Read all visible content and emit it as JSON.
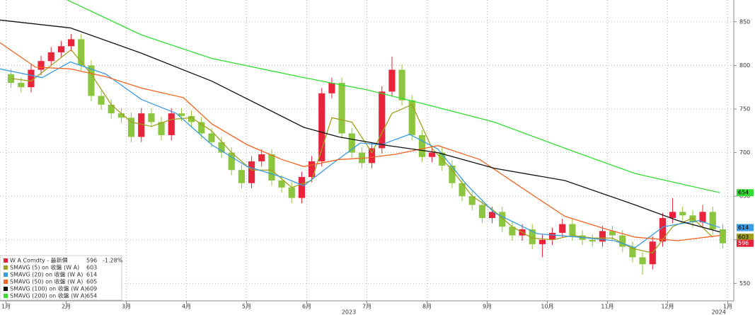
{
  "chart_data": {
    "type": "candlestick",
    "xlim": [
      -0.1,
      12.1
    ],
    "ylim": [
      530,
      875
    ],
    "xticks": [
      {
        "value": 0,
        "label": "1月"
      },
      {
        "value": 1,
        "label": "2月"
      },
      {
        "value": 2,
        "label": "3月"
      },
      {
        "value": 3,
        "label": "4月"
      },
      {
        "value": 4,
        "label": "5月"
      },
      {
        "value": 5,
        "label": "6月"
      },
      {
        "value": 6,
        "label": "7月"
      },
      {
        "value": 7,
        "label": "8月"
      },
      {
        "value": 8,
        "label": "9月"
      },
      {
        "value": 9,
        "label": "10月"
      },
      {
        "value": 10,
        "label": "11月"
      },
      {
        "value": 11,
        "label": "12月"
      },
      {
        "value": 12,
        "label": "1月"
      }
    ],
    "year_labels": [
      {
        "value": 5.7,
        "label": "2023"
      },
      {
        "value": 11.85,
        "label": "2024"
      }
    ],
    "yticks": [
      550,
      600,
      650,
      700,
      750,
      800,
      850
    ],
    "grid": true,
    "legend": "lower left",
    "candles": {
      "name": "W A Comdty - 最新價",
      "change_label": "-1.28%",
      "up_color": "#e8243a",
      "down_color": "#8cc63e",
      "x": [
        0.083,
        0.25,
        0.417,
        0.583,
        0.75,
        0.917,
        1.083,
        1.25,
        1.417,
        1.583,
        1.75,
        1.917,
        2.083,
        2.25,
        2.417,
        2.583,
        2.75,
        2.917,
        3.083,
        3.25,
        3.417,
        3.583,
        3.75,
        3.917,
        4.083,
        4.25,
        4.417,
        4.583,
        4.75,
        4.917,
        5.083,
        5.25,
        5.417,
        5.583,
        5.75,
        5.917,
        6.083,
        6.25,
        6.417,
        6.583,
        6.75,
        6.917,
        7.083,
        7.25,
        7.417,
        7.583,
        7.75,
        7.917,
        8.083,
        8.25,
        8.417,
        8.583,
        8.75,
        8.917,
        9.083,
        9.25,
        9.417,
        9.583,
        9.75,
        9.917,
        10.083,
        10.25,
        10.417,
        10.583,
        10.75,
        10.917,
        11.083,
        11.25,
        11.417,
        11.583,
        11.75,
        11.917
      ],
      "open": [
        790,
        780,
        775,
        795,
        805,
        815,
        822,
        830,
        800,
        765,
        755,
        745,
        740,
        718,
        745,
        735,
        720,
        745,
        742,
        735,
        722,
        712,
        700,
        680,
        665,
        690,
        698,
        668,
        660,
        648,
        672,
        690,
        768,
        780,
        722,
        700,
        688,
        705,
        770,
        795,
        760,
        720,
        695,
        700,
        685,
        665,
        650,
        640,
        625,
        632,
        615,
        605,
        612,
        595,
        600,
        608,
        618,
        605,
        600,
        598,
        610,
        605,
        592,
        580,
        572,
        598,
        625,
        632,
        628,
        620,
        632,
        612
      ],
      "high": [
        796,
        786,
        801,
        811,
        821,
        828,
        836,
        836,
        806,
        771,
        761,
        751,
        746,
        751,
        751,
        741,
        751,
        751,
        748,
        741,
        728,
        718,
        706,
        686,
        696,
        704,
        704,
        674,
        666,
        678,
        696,
        774,
        786,
        786,
        728,
        706,
        711,
        776,
        810,
        801,
        766,
        726,
        706,
        706,
        691,
        671,
        656,
        646,
        638,
        638,
        621,
        618,
        618,
        606,
        614,
        624,
        624,
        611,
        606,
        616,
        616,
        611,
        598,
        586,
        604,
        631,
        648,
        638,
        634,
        640,
        638,
        618
      ],
      "low": [
        774,
        769,
        769,
        789,
        799,
        809,
        816,
        794,
        759,
        749,
        739,
        734,
        712,
        712,
        729,
        714,
        714,
        736,
        729,
        716,
        706,
        694,
        674,
        659,
        659,
        684,
        662,
        654,
        642,
        642,
        666,
        684,
        762,
        716,
        694,
        682,
        682,
        699,
        764,
        754,
        714,
        689,
        689,
        679,
        659,
        644,
        634,
        619,
        619,
        609,
        599,
        599,
        589,
        580,
        594,
        602,
        599,
        594,
        592,
        592,
        599,
        586,
        574,
        560,
        566,
        592,
        619,
        622,
        614,
        614,
        606,
        590
      ],
      "close": [
        780,
        775,
        795,
        805,
        815,
        822,
        830,
        800,
        765,
        755,
        745,
        740,
        718,
        745,
        735,
        720,
        745,
        742,
        735,
        722,
        712,
        700,
        680,
        665,
        690,
        698,
        668,
        660,
        648,
        672,
        690,
        768,
        780,
        722,
        700,
        688,
        705,
        770,
        795,
        760,
        720,
        695,
        700,
        685,
        665,
        650,
        640,
        625,
        632,
        615,
        605,
        612,
        595,
        600,
        608,
        618,
        605,
        600,
        598,
        610,
        605,
        592,
        580,
        572,
        598,
        625,
        632,
        628,
        620,
        632,
        612,
        596
      ]
    },
    "series": [
      {
        "name": "SMAVG (5)  on 收盤 (W A)",
        "color": "#a0a020",
        "x": [
          0.083,
          0.417,
          0.75,
          1.083,
          1.417,
          1.75,
          2.083,
          2.417,
          2.75,
          3.083,
          3.417,
          3.75,
          4.083,
          4.417,
          4.75,
          5.083,
          5.417,
          5.75,
          6.083,
          6.417,
          6.75,
          7.083,
          7.417,
          7.75,
          8.083,
          8.417,
          8.75,
          9.083,
          9.417,
          9.75,
          10.083,
          10.417,
          10.75,
          11.083,
          11.417,
          11.75
        ],
        "values": [
          785,
          782,
          800,
          818,
          790,
          755,
          735,
          730,
          738,
          740,
          725,
          700,
          680,
          680,
          660,
          668,
          740,
          735,
          700,
          745,
          755,
          705,
          680,
          650,
          635,
          615,
          602,
          600,
          605,
          602,
          602,
          590,
          585,
          615,
          625,
          603
        ]
      },
      {
        "name": "SMAVG (20)  on 收盤 (W A)",
        "color": "#3a9be0",
        "x": [
          -0.1,
          0.6,
          1.07,
          1.66,
          2.25,
          2.83,
          3.42,
          4.01,
          4.59,
          4.95,
          5.42,
          5.89,
          6.24,
          6.71,
          7.18,
          7.65,
          8.12,
          8.83,
          9.53,
          10.11,
          10.46,
          10.93,
          11.52,
          11.87
        ],
        "values": [
          796,
          786,
          804,
          790,
          761,
          745,
          709,
          684,
          672,
          662,
          687,
          711,
          709,
          721,
          704,
          664,
          631,
          607,
          603,
          599,
          591,
          615,
          622,
          614
        ]
      },
      {
        "name": "SMAVG (50)  on 收盤 (W A)",
        "color": "#f26522",
        "x": [
          -0.1,
          0.49,
          1.07,
          1.66,
          2.25,
          2.95,
          3.42,
          4.01,
          4.59,
          4.95,
          5.53,
          6.0,
          6.47,
          7.18,
          7.88,
          8.59,
          9.29,
          9.99,
          10.46,
          11.17,
          11.87
        ],
        "values": [
          826,
          798,
          796,
          787,
          774,
          763,
          733,
          709,
          692,
          684,
          692,
          694,
          698,
          708,
          692,
          659,
          627,
          612,
          603,
          599,
          605
        ]
      },
      {
        "name": "SMAVG (100)  on 收盤 (W A)",
        "color": "#111111",
        "x": [
          -0.1,
          1.07,
          2.25,
          3.42,
          4.95,
          5.53,
          6.36,
          7.18,
          8.12,
          9.29,
          10.46,
          11.17,
          11.87
        ],
        "values": [
          852,
          843,
          814,
          782,
          729,
          718,
          708,
          700,
          682,
          668,
          640,
          622,
          609
        ]
      },
      {
        "name": "SMAVG (200)  on 收盤 (W A)",
        "color": "#33dd33",
        "x": [
          1.02,
          2.25,
          3.42,
          4.95,
          6.0,
          6.94,
          8.12,
          9.29,
          10.46,
          11.87
        ],
        "values": [
          875,
          835,
          808,
          786,
          772,
          756,
          735,
          705,
          676,
          654
        ]
      }
    ]
  }
}
